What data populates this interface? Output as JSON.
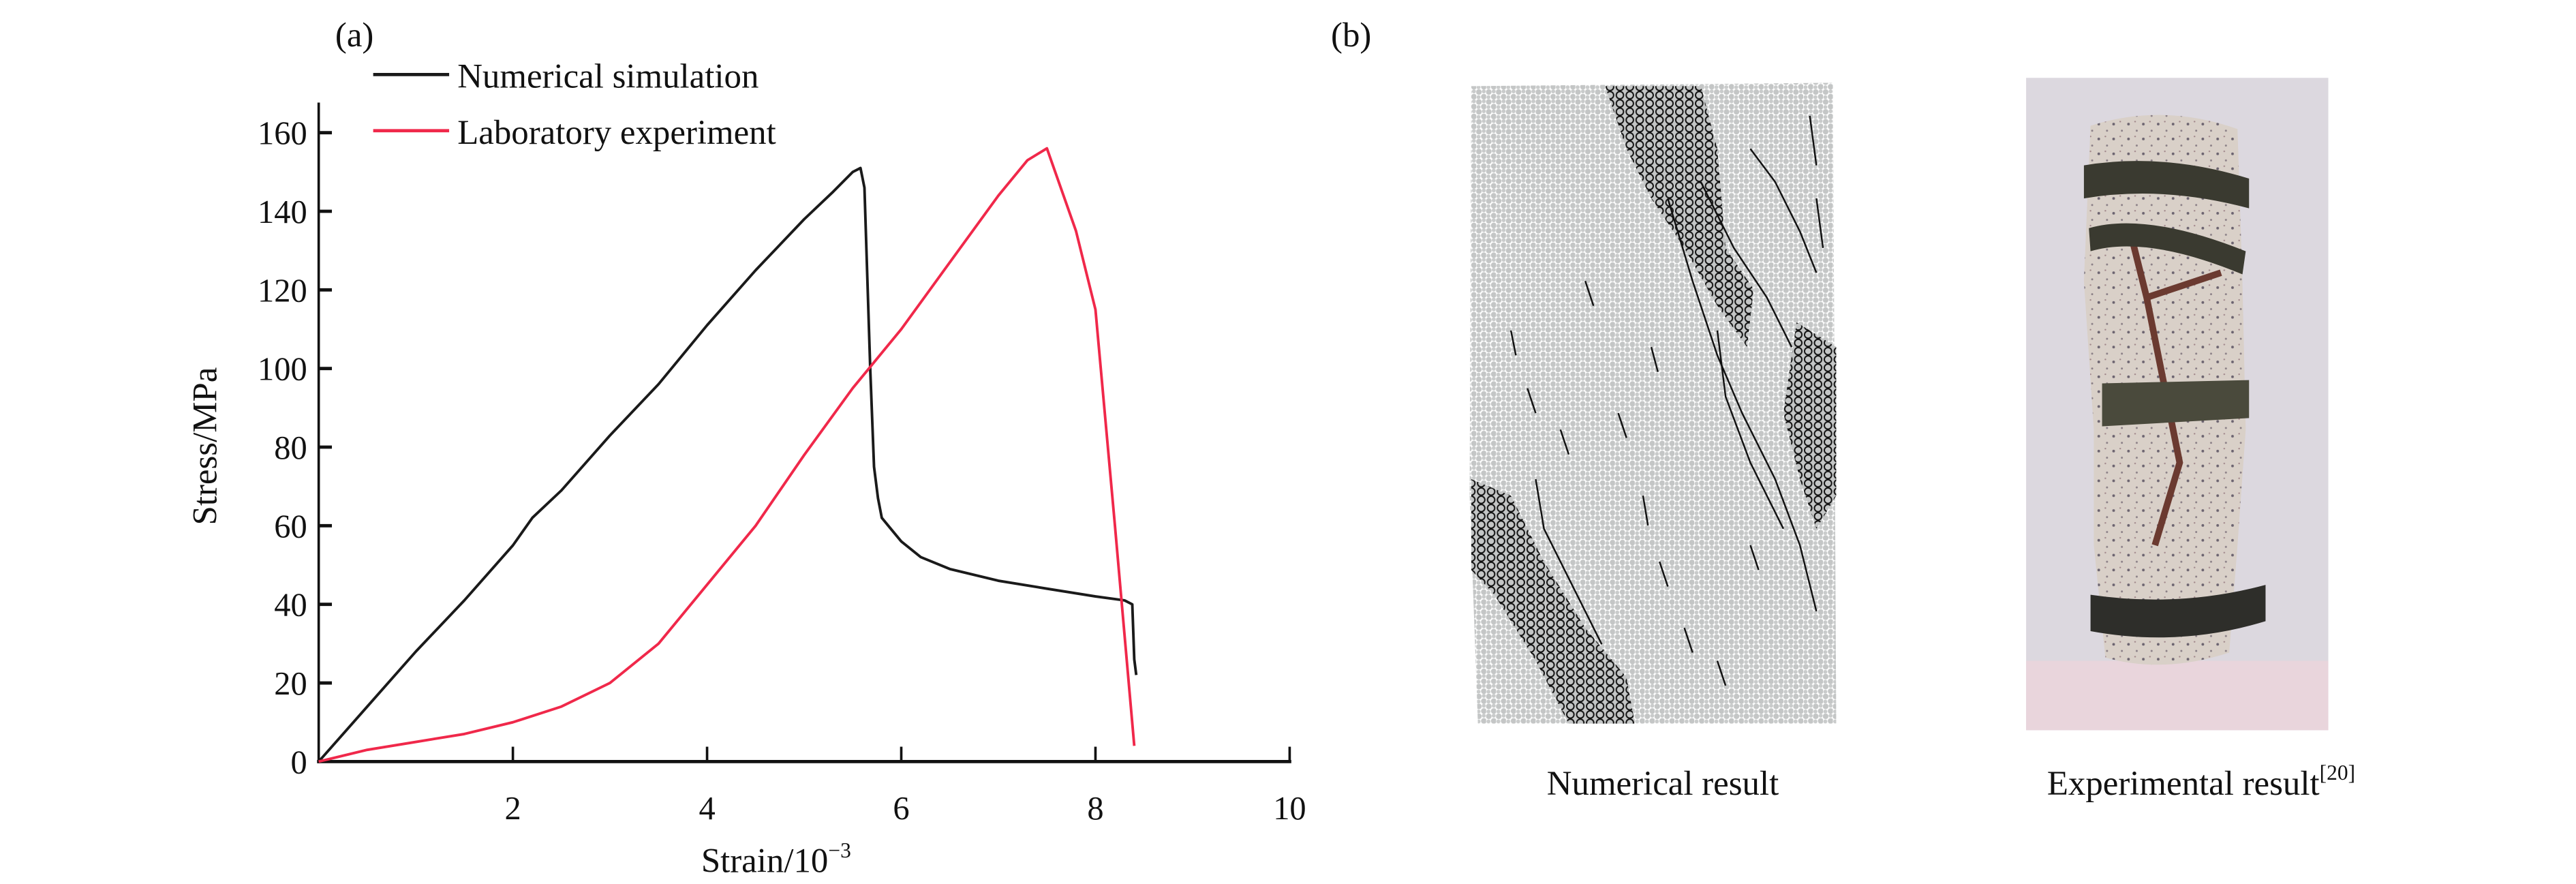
{
  "panel_a": {
    "label": "(a)",
    "chart_data": {
      "type": "line",
      "xlabel": "Strain/10",
      "xlabel_superscript": "−3",
      "ylabel": "Stress/MPa",
      "xlim": [
        0,
        10
      ],
      "ylim": [
        0,
        165
      ],
      "xticks": [
        "2",
        "4",
        "6",
        "8",
        "10"
      ],
      "yticks": [
        "0",
        "20",
        "40",
        "60",
        "80",
        "100",
        "120",
        "140",
        "160"
      ],
      "grid": false,
      "legend_position": "top-left",
      "series": [
        {
          "name": "Numerical simulation",
          "color": "#1a1a1a",
          "x": [
            0,
            0.5,
            1,
            1.5,
            2,
            2.2,
            2.5,
            3,
            3.5,
            4,
            4.5,
            5,
            5.3,
            5.5,
            5.58,
            5.62,
            5.68,
            5.72,
            5.76,
            5.8,
            5.9,
            6,
            6.2,
            6.5,
            7,
            7.5,
            8,
            8.3,
            8.38,
            8.4,
            8.42
          ],
          "y": [
            0,
            14,
            28,
            41,
            55,
            62,
            69,
            83,
            96,
            111,
            125,
            138,
            145,
            150,
            151,
            146,
            100,
            75,
            67,
            62,
            59,
            56,
            52,
            49,
            46,
            44,
            42,
            41,
            40,
            26,
            22
          ]
        },
        {
          "name": "Laboratory experiment",
          "color": "#f0284a",
          "x": [
            0,
            0.5,
            1,
            1.5,
            2,
            2.5,
            3,
            3.5,
            4,
            4.5,
            5,
            5.5,
            6,
            6.5,
            7,
            7.3,
            7.5,
            7.8,
            8.0,
            8.2,
            8.4
          ],
          "y": [
            0,
            3,
            5,
            7,
            10,
            14,
            20,
            30,
            45,
            60,
            78,
            95,
            110,
            127,
            144,
            153,
            156,
            135,
            115,
            60,
            4
          ]
        }
      ]
    }
  },
  "panel_b": {
    "label": "(b)",
    "numerical_caption": "Numerical result",
    "experimental_caption": "Experimental result",
    "experimental_ref": "[20]"
  }
}
